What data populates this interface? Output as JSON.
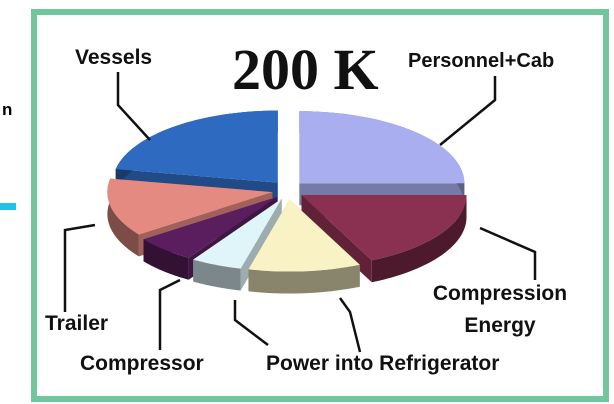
{
  "chart_data": {
    "type": "pie3d",
    "title": "200 K",
    "categories": [
      "Personnel+Cab",
      "Compression Energy",
      "Power into Refrigerator",
      null,
      "Compressor",
      "Trailer",
      "Vessels"
    ],
    "values": [
      25,
      18,
      11,
      5,
      6,
      13,
      22
    ],
    "colors": [
      "#a9aef0",
      "#8a3050",
      "#f8f2c4",
      "#dff5fa",
      "#5a1e5e",
      "#e58a80",
      "#2e6bc0"
    ]
  },
  "side_fragment": "n"
}
